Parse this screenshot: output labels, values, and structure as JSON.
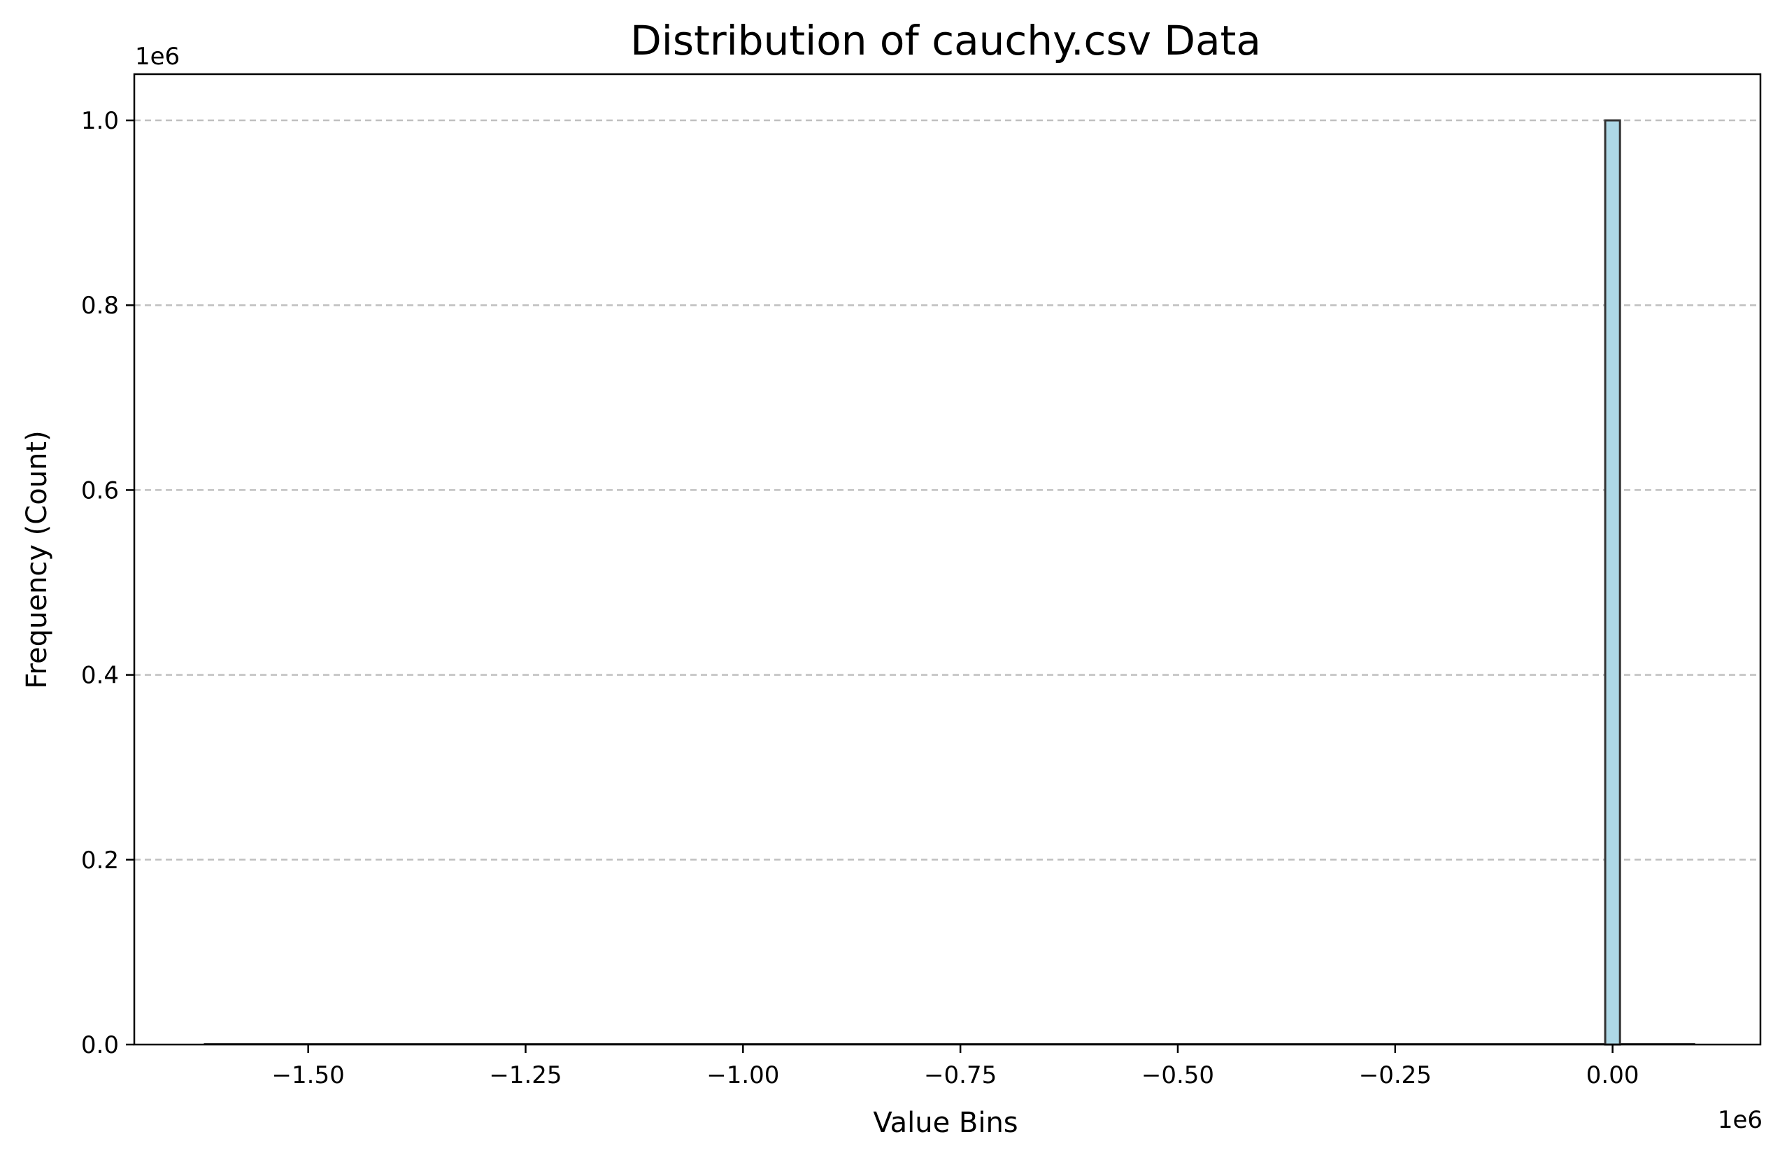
{
  "chart_data": {
    "type": "bar",
    "title": "Distribution of cauchy.csv Data",
    "xlabel": "Value Bins",
    "ylabel": "Frequency (Count)",
    "x_offset_label": "1e6",
    "y_offset_label": "1e6",
    "xlim": [
      -1.7,
      0.17
    ],
    "ylim": [
      0,
      1.05
    ],
    "x_units_multiplier": 1000000,
    "y_units_multiplier": 1000000,
    "x_ticks": [
      -1.5,
      -1.25,
      -1.0,
      -0.75,
      -0.5,
      -0.25,
      0.0
    ],
    "x_tick_labels": [
      "−1.50",
      "−1.25",
      "−1.00",
      "−0.75",
      "−0.50",
      "−0.25",
      "0.00"
    ],
    "y_ticks": [
      0.0,
      0.2,
      0.4,
      0.6,
      0.8,
      1.0
    ],
    "y_tick_labels": [
      "0.0",
      "0.2",
      "0.4",
      "0.6",
      "0.8",
      "1.0"
    ],
    "grid": "y-dashed",
    "bins": [
      {
        "x0": -0.0085,
        "x1": 0.0085,
        "count": 1.0
      }
    ],
    "data_range": [
      -1.62,
      0.095
    ],
    "colors": {
      "bar_fill": "#add8e6",
      "bar_edge": "#333333",
      "grid": "#c0c0c0"
    }
  }
}
